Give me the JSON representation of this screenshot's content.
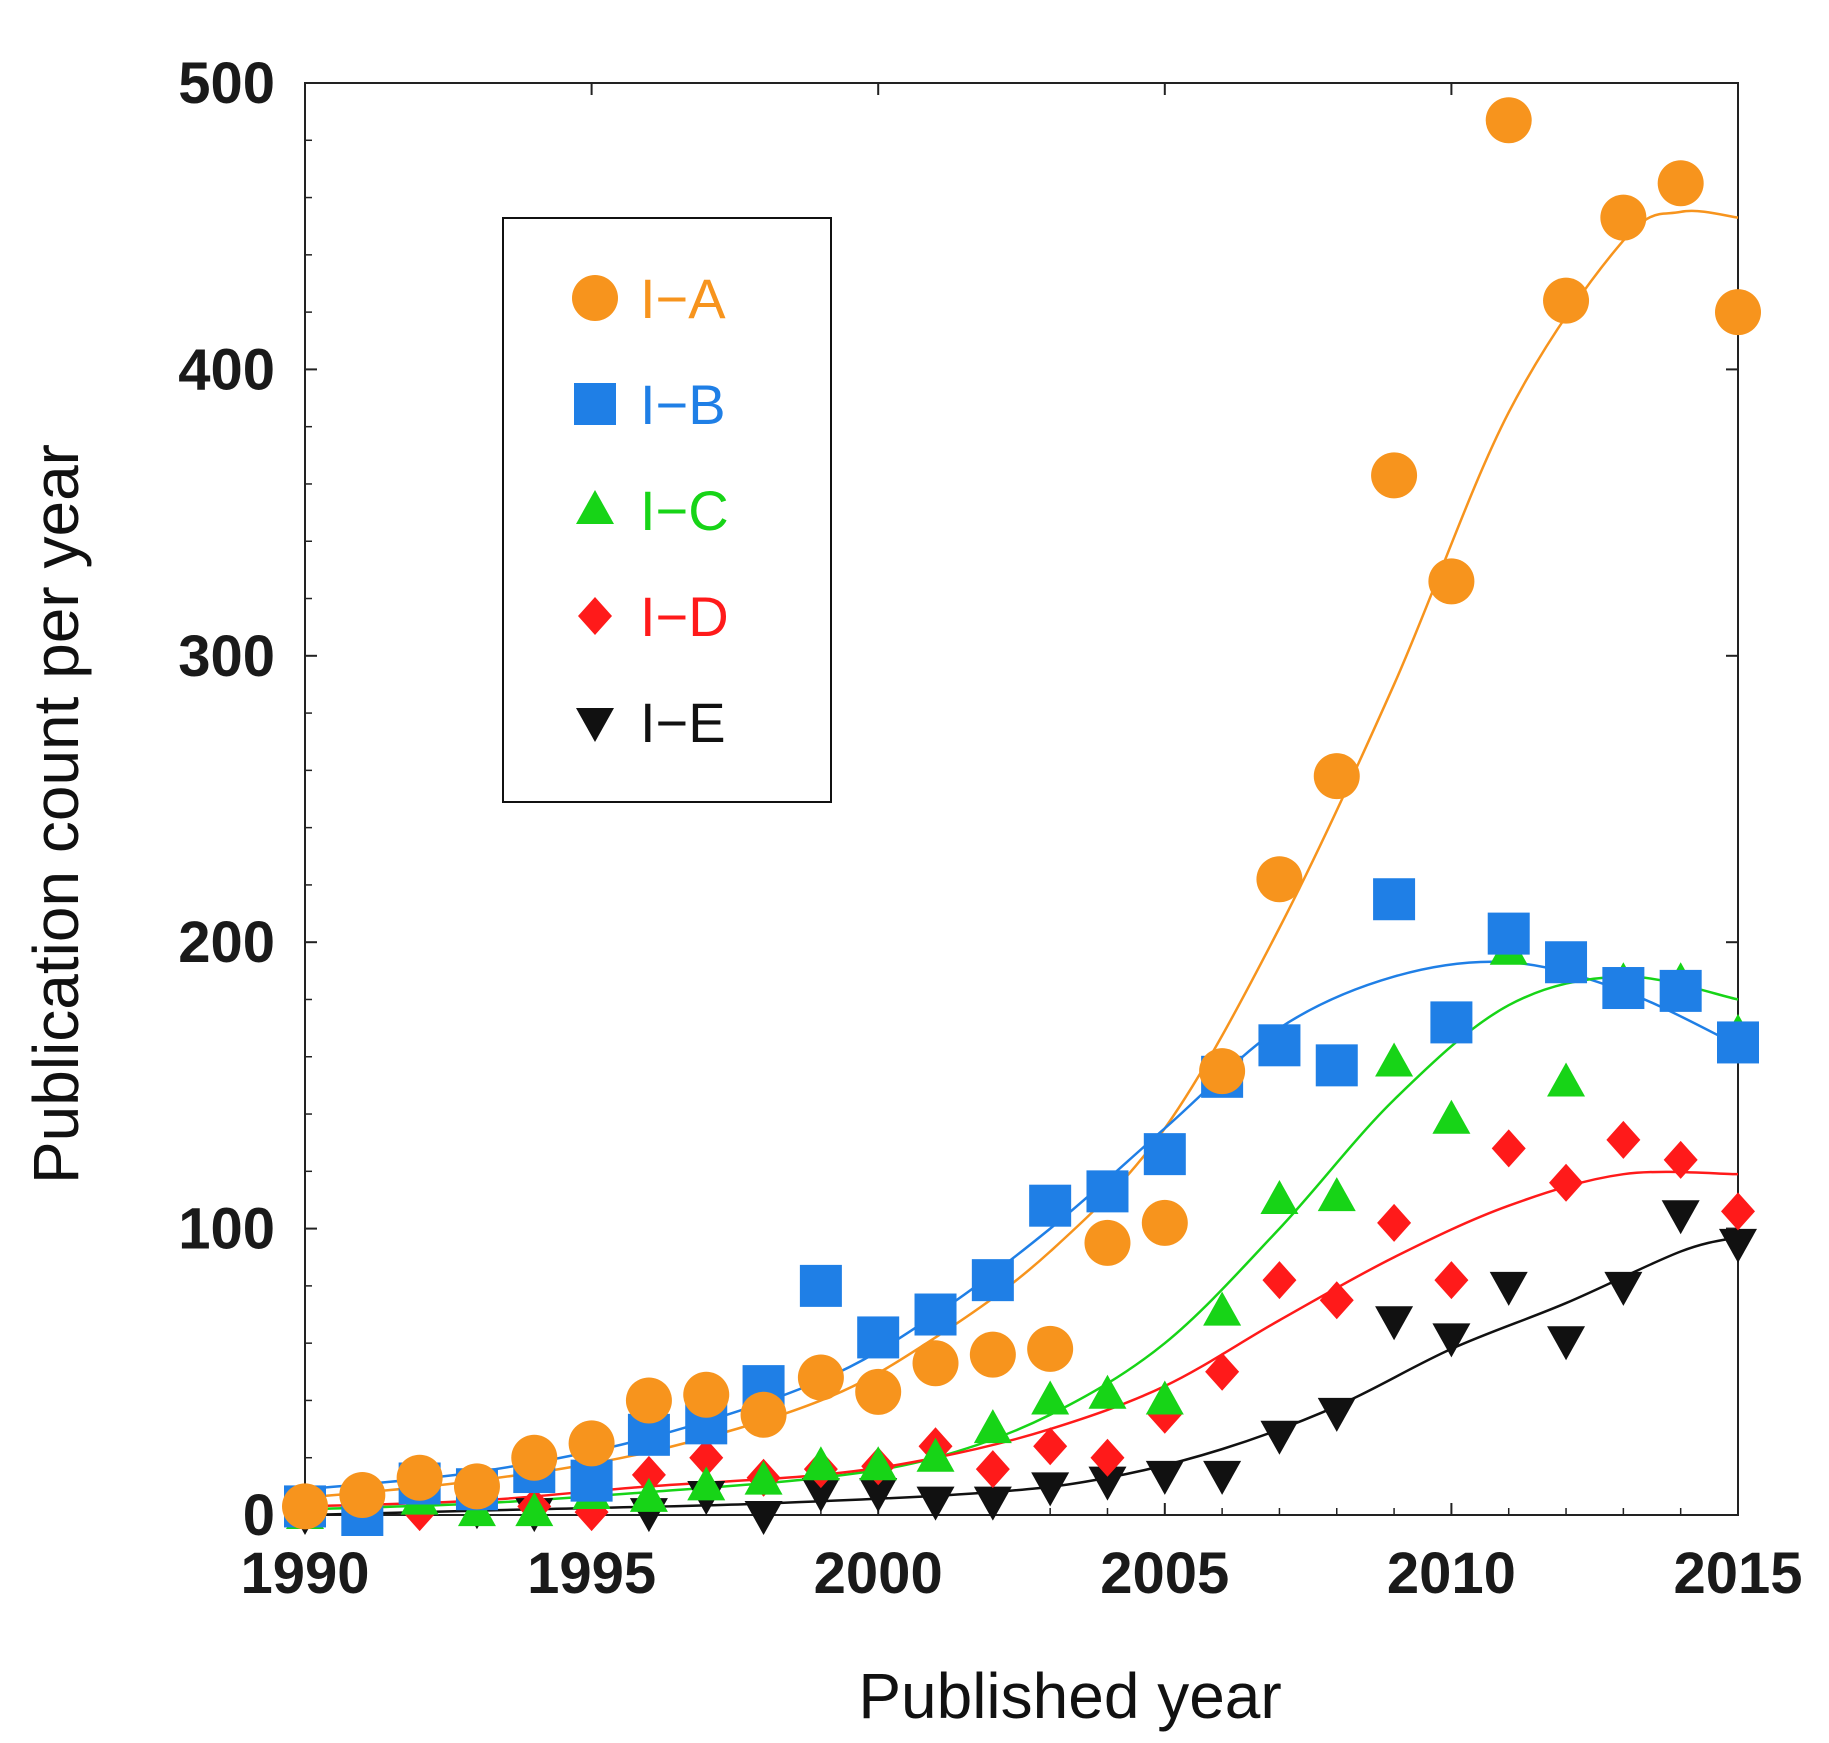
{
  "chart_data": {
    "type": "scatter",
    "title": "",
    "xlabel": "Published year",
    "ylabel": "Publication count per year",
    "xlim": [
      1990,
      2015
    ],
    "ylim": [
      0,
      500
    ],
    "xticks": [
      1990,
      1995,
      2000,
      2005,
      2010,
      2015
    ],
    "yticks": [
      0,
      100,
      200,
      300,
      400,
      500
    ],
    "xtick_labels": [
      "1990",
      "1995",
      "2000",
      "2005",
      "2010",
      "2015"
    ],
    "ytick_labels": [
      "0",
      "100",
      "200",
      "300",
      "400",
      "500"
    ],
    "grid": false,
    "legend_position": "top-left",
    "x": [
      1990,
      1991,
      1992,
      1993,
      1994,
      1995,
      1996,
      1997,
      1998,
      1999,
      2000,
      2001,
      2002,
      2003,
      2004,
      2005,
      2006,
      2007,
      2008,
      2009,
      2010,
      2011,
      2012,
      2013,
      2014,
      2015
    ],
    "series": [
      {
        "name": "I−A",
        "marker": "circle",
        "color": "#f7941d",
        "values": [
          3,
          7,
          13,
          10,
          20,
          25,
          40,
          42,
          35,
          48,
          43,
          53,
          56,
          58,
          95,
          102,
          155,
          222,
          258,
          363,
          326,
          487,
          424,
          453,
          465,
          420
        ],
        "trend": [
          [
            1990,
            6
          ],
          [
            1993,
            12
          ],
          [
            1996,
            22
          ],
          [
            1999,
            40
          ],
          [
            2001,
            62
          ],
          [
            2003,
            92
          ],
          [
            2005,
            135
          ],
          [
            2007,
            205
          ],
          [
            2009,
            290
          ],
          [
            2011,
            385
          ],
          [
            2013,
            445
          ],
          [
            2014,
            455
          ],
          [
            2015,
            453
          ]
        ]
      },
      {
        "name": "I−B",
        "marker": "square",
        "color": "#1f7fe6",
        "values": [
          3,
          0,
          11,
          9,
          15,
          12,
          28,
          32,
          45,
          80,
          62,
          70,
          82,
          108,
          113,
          126,
          153,
          164,
          157,
          215,
          172,
          203,
          193,
          184,
          183,
          165
        ],
        "trend": [
          [
            1990,
            9
          ],
          [
            1993,
            15
          ],
          [
            1996,
            27
          ],
          [
            1999,
            47
          ],
          [
            2001,
            70
          ],
          [
            2003,
            100
          ],
          [
            2005,
            135
          ],
          [
            2007,
            170
          ],
          [
            2009,
            188
          ],
          [
            2011,
            193
          ],
          [
            2013,
            183
          ],
          [
            2015,
            164
          ]
        ]
      },
      {
        "name": "I−C",
        "marker": "triangle-up",
        "color": "#17d417",
        "values": [
          0,
          2,
          5,
          1,
          1,
          7,
          6,
          10,
          12,
          17,
          17,
          20,
          30,
          40,
          42,
          40,
          71,
          110,
          111,
          158,
          138,
          197,
          151,
          186,
          186,
          168
        ],
        "trend": [
          [
            1990,
            2
          ],
          [
            1993,
            4
          ],
          [
            1996,
            8
          ],
          [
            1999,
            13
          ],
          [
            2001,
            20
          ],
          [
            2003,
            35
          ],
          [
            2005,
            60
          ],
          [
            2007,
            100
          ],
          [
            2009,
            145
          ],
          [
            2011,
            178
          ],
          [
            2013,
            188
          ],
          [
            2015,
            180
          ]
        ]
      },
      {
        "name": "I−D",
        "marker": "diamond",
        "color": "#ff1a1a",
        "values": [
          2,
          2,
          1,
          5,
          3,
          1,
          14,
          20,
          13,
          16,
          17,
          24,
          16,
          24,
          20,
          35,
          50,
          82,
          75,
          102,
          82,
          128,
          116,
          131,
          124,
          106
        ],
        "trend": [
          [
            1990,
            3
          ],
          [
            1993,
            5
          ],
          [
            1996,
            10
          ],
          [
            1999,
            14
          ],
          [
            2001,
            20
          ],
          [
            2003,
            30
          ],
          [
            2005,
            45
          ],
          [
            2007,
            68
          ],
          [
            2009,
            90
          ],
          [
            2011,
            108
          ],
          [
            2013,
            119
          ],
          [
            2015,
            119
          ]
        ]
      },
      {
        "name": "I−E",
        "marker": "triangle-down",
        "color": "#111111",
        "values": [
          0,
          0,
          3,
          2,
          1,
          4,
          1,
          7,
          0,
          8,
          8,
          5,
          5,
          10,
          12,
          14,
          14,
          28,
          36,
          68,
          62,
          80,
          61,
          80,
          105,
          95
        ],
        "trend": [
          [
            1990,
            0
          ],
          [
            1994,
            2
          ],
          [
            1998,
            4
          ],
          [
            2002,
            8
          ],
          [
            2004,
            13
          ],
          [
            2006,
            23
          ],
          [
            2008,
            38
          ],
          [
            2010,
            58
          ],
          [
            2012,
            74
          ],
          [
            2014,
            92
          ],
          [
            2015,
            97
          ]
        ]
      }
    ]
  }
}
